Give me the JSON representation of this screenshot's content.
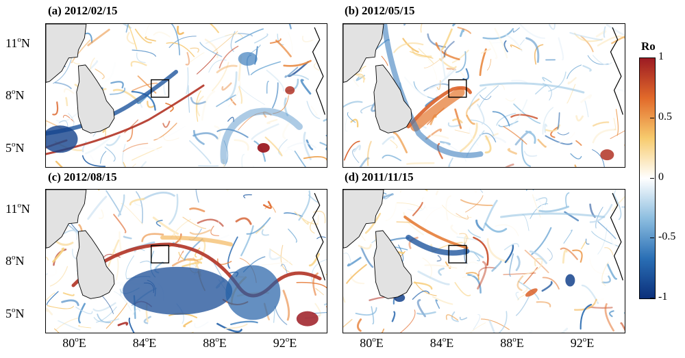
{
  "chart_data": {
    "type": "heatmap",
    "variable": "Ro",
    "colorbar": {
      "title": "Ro",
      "range": [
        -1,
        1
      ],
      "ticks": [
        {
          "value": 1,
          "label": "1"
        },
        {
          "value": 0.5,
          "label": "0.5"
        },
        {
          "value": 0,
          "label": "0"
        },
        {
          "value": -0.5,
          "label": "-0.5"
        },
        {
          "value": -1,
          "label": "-1"
        }
      ],
      "colors": [
        "#0b2f7a",
        "#2a6fb5",
        "#8dbee0",
        "#ffffff",
        "#f7cb6e",
        "#e26a2a",
        "#9c1b23"
      ]
    },
    "axes": {
      "x_ticks": [
        {
          "value": 80,
          "deg": "80",
          "suffix": "E"
        },
        {
          "value": 84,
          "deg": "84",
          "suffix": "E"
        },
        {
          "value": 88,
          "deg": "88",
          "suffix": "E"
        },
        {
          "value": 92,
          "deg": "92",
          "suffix": "E"
        }
      ],
      "y_ticks": [
        {
          "value": 11,
          "deg": "11",
          "suffix": "N"
        },
        {
          "value": 8,
          "deg": "8",
          "suffix": "N"
        },
        {
          "value": 5,
          "deg": "5",
          "suffix": "N"
        }
      ],
      "deg_symbol": "o",
      "xlim": [
        78,
        94
      ],
      "ylim": [
        4,
        12.2
      ]
    },
    "land_color": "#e2e2e2",
    "panels": [
      {
        "id": "a",
        "title": "(a) 2012/02/15",
        "box": {
          "lon": [
            84,
            85
          ],
          "lat": [
            8,
            9
          ]
        }
      },
      {
        "id": "b",
        "title": "(b) 2012/05/15",
        "box": {
          "lon": [
            84,
            85
          ],
          "lat": [
            8,
            9
          ]
        }
      },
      {
        "id": "c",
        "title": "(c) 2012/08/15",
        "box": {
          "lon": [
            84,
            85
          ],
          "lat": [
            8,
            9
          ]
        }
      },
      {
        "id": "d",
        "title": "(d) 2011/11/15",
        "box": {
          "lon": [
            84,
            85
          ],
          "lat": [
            8,
            9
          ]
        }
      }
    ]
  }
}
